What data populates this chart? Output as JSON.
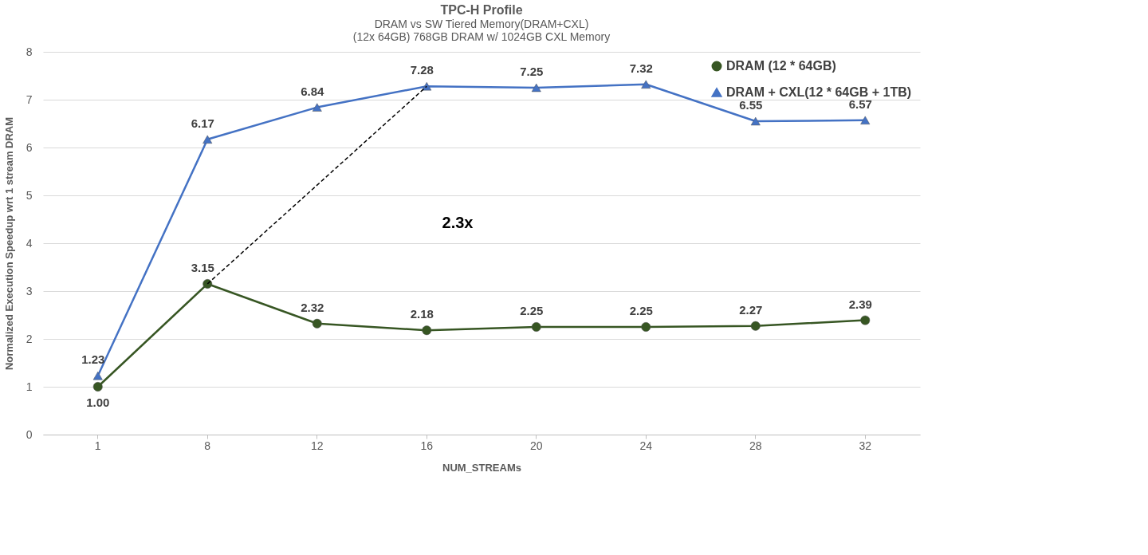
{
  "chart_data": {
    "type": "line",
    "title": "TPC-H Profile",
    "subtitle": [
      "DRAM vs SW Tiered Memory(DRAM+CXL)",
      "(12x 64GB) 768GB DRAM w/ 1024GB CXL Memory"
    ],
    "xlabel": "NUM_STREAMs",
    "ylabel": "Normalized Execution Speedup wrt 1 stream DRAM",
    "categories": [
      "1",
      "8",
      "12",
      "16",
      "20",
      "24",
      "28",
      "32"
    ],
    "series": [
      {
        "name": "DRAM (12 * 64GB)",
        "color": "#375623",
        "marker": "circle",
        "values": [
          1.0,
          3.15,
          2.32,
          2.18,
          2.25,
          2.25,
          2.27,
          2.39
        ],
        "value_labels": [
          "1.00",
          "3.15",
          "2.32",
          "2.18",
          "2.25",
          "2.25",
          "2.27",
          "2.39"
        ]
      },
      {
        "name": "DRAM + CXL(12 * 64GB + 1TB)",
        "color": "#4472c4",
        "marker": "triangle",
        "values": [
          1.23,
          6.17,
          6.84,
          7.28,
          7.25,
          7.32,
          6.55,
          6.57
        ],
        "value_labels": [
          "1.23",
          "6.17",
          "6.84",
          "7.28",
          "7.25",
          "7.32",
          "6.55",
          "6.57"
        ]
      }
    ],
    "ylim": [
      0,
      8
    ],
    "yticks": [
      0,
      1,
      2,
      3,
      4,
      5,
      6,
      7,
      8
    ],
    "grid": "y",
    "legend": "top right",
    "line_style": "solid",
    "annotations": [
      "2.3x"
    ]
  }
}
